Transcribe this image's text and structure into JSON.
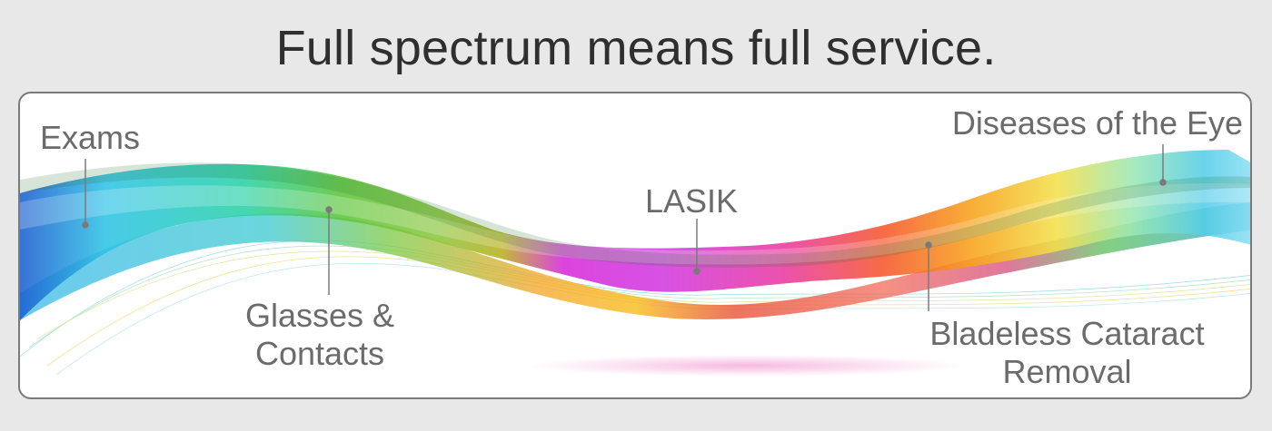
{
  "headline": "Full spectrum means full service.",
  "services": [
    {
      "line1": "Exams",
      "line2": ""
    },
    {
      "line1": "Glasses &",
      "line2": "Contacts"
    },
    {
      "line1": "LASIK",
      "line2": ""
    },
    {
      "line1": "Bladeless Cataract",
      "line2": "Removal"
    },
    {
      "line1": "Diseases of the Eye",
      "line2": ""
    }
  ],
  "colors": {
    "background": "#e8e8e8",
    "panel": "#ffffff",
    "text": "#6b6b6b",
    "headline": "#2f2f2f"
  }
}
